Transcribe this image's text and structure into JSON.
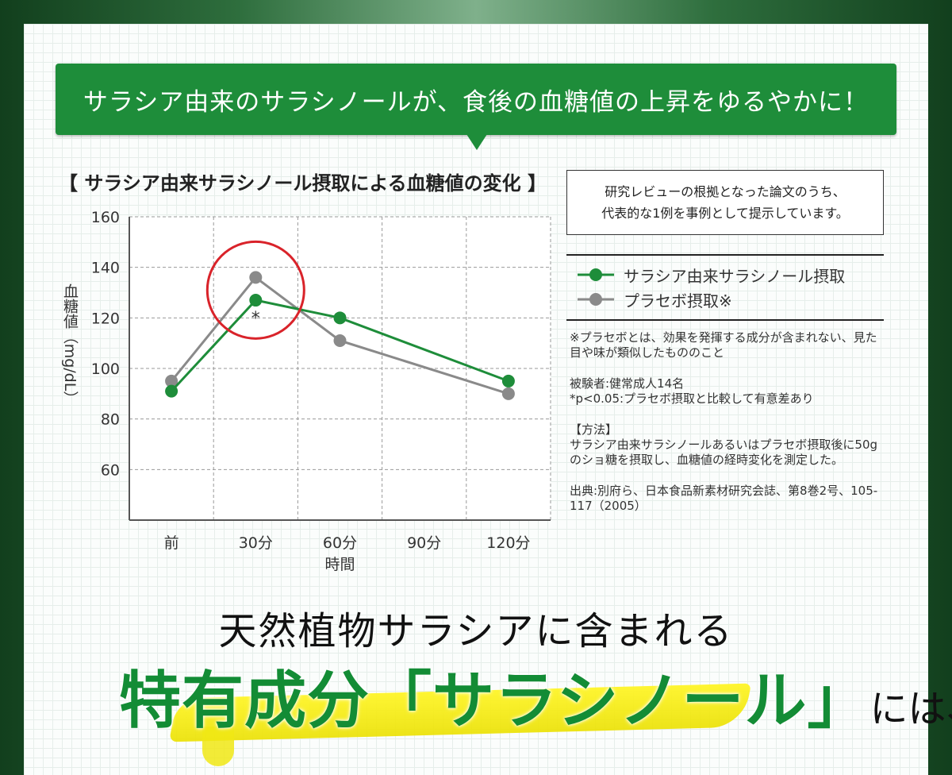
{
  "banner": {
    "text": "サラシア由来のサラシノールが、食後の血糖値の上昇をゆるやかに！"
  },
  "chart_title": "【 サラシア由来サラシノール摂取による血糖値の変化 】",
  "note_box": {
    "line1": "研究レビューの根拠となった論文のうち、",
    "line2": "代表的な1例を事例として提示しています。"
  },
  "notes": {
    "placebo_def": "※プラセボとは、効果を発揮する成分が含まれない、見た目や味が類似したもののこと",
    "subjects": "被験者:健常成人14名",
    "significance": "*p<0.05:プラセボ摂取と比較して有意差あり",
    "method_title": "【方法】",
    "method_body": "サラシア由来サラシノールあるいはプラセボ摂取後に50gのショ糖を摂取し、血糖値の経時変化を測定した。",
    "source": "出典:別府ら、日本食品新素材研究会誌、第8巻2号、105-117（2005）"
  },
  "headline": {
    "line1": "天然植物サラシアに含まれる",
    "line2_main": "特有成分「サラシノール」",
    "line2_tail": "には、"
  },
  "colors": {
    "green": "#1e8d3a",
    "gray": "#8a8a8a",
    "highlight_circle": "#d9232a"
  },
  "chart_data": {
    "type": "line",
    "title": "【 サラシア由来サラシノール摂取による血糖値の変化 】",
    "categories": [
      "前",
      "30分",
      "60分",
      "90分",
      "120分"
    ],
    "xlabel": "時間",
    "ylabel": "血糖値（mg/dL）",
    "ylim": [
      40,
      160
    ],
    "yticks": [
      60,
      80,
      100,
      120,
      140,
      160
    ],
    "grid": true,
    "legend_position": "right",
    "series": [
      {
        "name": "サラシア由来サラシノール摂取",
        "color": "#1e8d3a",
        "values": [
          91,
          127,
          120,
          null,
          95
        ]
      },
      {
        "name": "プラセボ摂取※",
        "color": "#8a8a8a",
        "values": [
          95,
          136,
          111,
          null,
          90
        ]
      }
    ],
    "annotations": [
      {
        "category": "30分",
        "text": "*"
      }
    ]
  }
}
